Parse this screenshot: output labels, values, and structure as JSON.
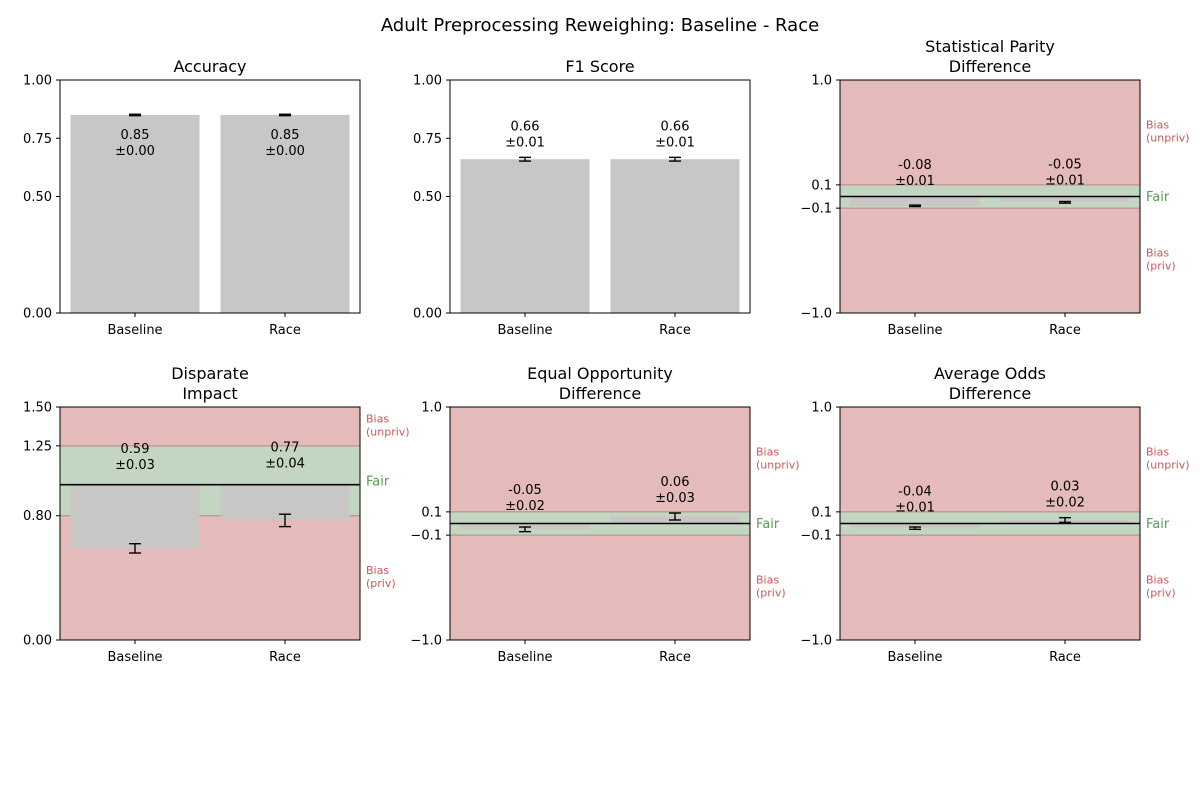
{
  "suptitle": "Adult Preprocessing Reweighing: Baseline - Race",
  "colors": {
    "bar": "#c8c7c6",
    "bias_zone": "#e4baba",
    "fair_zone": "#c2d6c2",
    "zone_edge": "#b38a7c",
    "fair_text": "#5a9a5a",
    "bias_text": "#c85a5a"
  },
  "zone_labels": {
    "bias_unpriv": [
      "Bias",
      "(unpriv)"
    ],
    "fair": "Fair",
    "bias_priv": [
      "Bias",
      "(priv)"
    ]
  },
  "chart_data": [
    {
      "type": "bar",
      "title": [
        "Accuracy"
      ],
      "categories": [
        "Baseline",
        "Race"
      ],
      "values": [
        0.85,
        0.85
      ],
      "errors": [
        0.003,
        0.003
      ],
      "labels": [
        [
          "0.85",
          "±0.00"
        ],
        [
          "0.85",
          "±0.00"
        ]
      ],
      "label_position": "inside",
      "ylim": [
        0,
        1
      ],
      "yticks": [
        0,
        0.5,
        0.75,
        1
      ],
      "ytick_labels": [
        "0.00",
        "0.50",
        "0.75",
        "1.00"
      ]
    },
    {
      "type": "bar",
      "title": [
        "F1 Score"
      ],
      "categories": [
        "Baseline",
        "Race"
      ],
      "values": [
        0.66,
        0.66
      ],
      "errors": [
        0.008,
        0.008
      ],
      "labels": [
        [
          "0.66",
          "±0.01"
        ],
        [
          "0.66",
          "±0.01"
        ]
      ],
      "ylim": [
        0,
        1
      ],
      "yticks": [
        0,
        0.5,
        0.75,
        1
      ],
      "ytick_labels": [
        "0.00",
        "0.50",
        "0.75",
        "1.00"
      ]
    },
    {
      "type": "bar",
      "title": [
        "Statistical Parity",
        "Difference"
      ],
      "categories": [
        "Baseline",
        "Race"
      ],
      "values": [
        -0.08,
        -0.05
      ],
      "errors": [
        0.006,
        0.007
      ],
      "labels": [
        [
          "-0.08",
          "±0.01"
        ],
        [
          "-0.05",
          "±0.01"
        ]
      ],
      "ylim": [
        -1,
        1
      ],
      "yticks": [
        -1,
        -0.1,
        0.1,
        1
      ],
      "ytick_labels": [
        "−1.0",
        "−0.1",
        "0.1",
        "1.0"
      ],
      "fair_range": [
        -0.1,
        0.1
      ],
      "reference": 0
    },
    {
      "type": "bar",
      "title": [
        "Disparate",
        "Impact"
      ],
      "categories": [
        "Baseline",
        "Race"
      ],
      "values": [
        0.59,
        0.77
      ],
      "errors": [
        0.03,
        0.04
      ],
      "labels": [
        [
          "0.59",
          "±0.03"
        ],
        [
          "0.77",
          "±0.04"
        ]
      ],
      "ylim": [
        0,
        1.5
      ],
      "yticks": [
        0,
        0.8,
        1.25,
        1.5
      ],
      "ytick_labels": [
        "0.00",
        "0.80",
        "1.25",
        "1.50"
      ],
      "fair_range": [
        0.8,
        1.25
      ],
      "reference": 1
    },
    {
      "type": "bar",
      "title": [
        "Equal Opportunity",
        "Difference"
      ],
      "categories": [
        "Baseline",
        "Race"
      ],
      "values": [
        -0.05,
        0.06
      ],
      "errors": [
        0.02,
        0.03
      ],
      "labels": [
        [
          "-0.05",
          "±0.02"
        ],
        [
          "0.06",
          "±0.03"
        ]
      ],
      "ylim": [
        -1,
        1
      ],
      "yticks": [
        -1,
        -0.1,
        0.1,
        1
      ],
      "ytick_labels": [
        "−1.0",
        "−0.1",
        "0.1",
        "1.0"
      ],
      "fair_range": [
        -0.1,
        0.1
      ],
      "reference": 0
    },
    {
      "type": "bar",
      "title": [
        "Average Odds",
        "Difference"
      ],
      "categories": [
        "Baseline",
        "Race"
      ],
      "values": [
        -0.04,
        0.03
      ],
      "errors": [
        0.01,
        0.02
      ],
      "labels": [
        [
          "-0.04",
          "±0.01"
        ],
        [
          "0.03",
          "±0.02"
        ]
      ],
      "ylim": [
        -1,
        1
      ],
      "yticks": [
        -1,
        -0.1,
        0.1,
        1
      ],
      "ytick_labels": [
        "−1.0",
        "−0.1",
        "0.1",
        "1.0"
      ],
      "fair_range": [
        -0.1,
        0.1
      ],
      "reference": 0
    }
  ]
}
